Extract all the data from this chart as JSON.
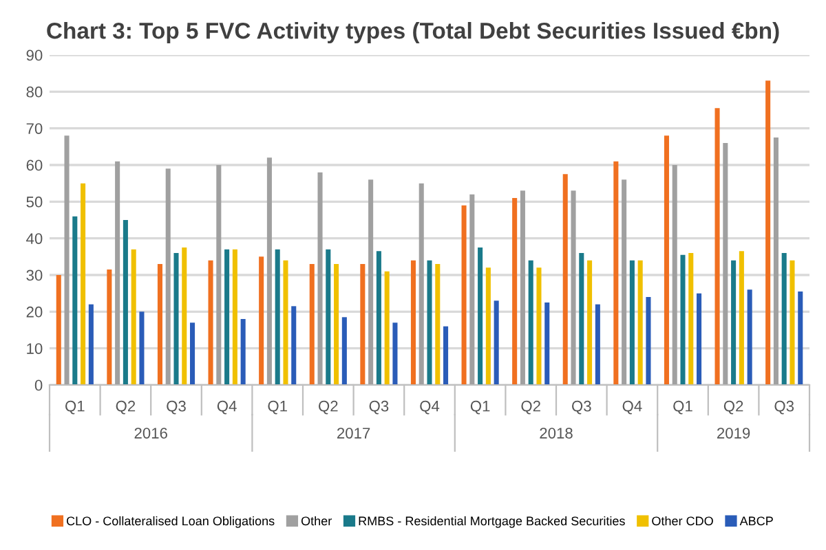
{
  "chart_data": {
    "type": "bar",
    "title": "Chart 3: Top 5 FVC Activity types (Total Debt Securities Issued €bn)",
    "categories": [
      "Q1",
      "Q2",
      "Q3",
      "Q4",
      "Q1",
      "Q2",
      "Q3",
      "Q4",
      "Q1",
      "Q2",
      "Q3",
      "Q4",
      "Q1",
      "Q2",
      "Q3"
    ],
    "annotations": [
      "2016",
      "2017",
      "2018",
      "2019"
    ],
    "series": [
      {
        "name": "CLO - Collateralised Loan Obligations",
        "color": "#f07020",
        "values": [
          30,
          31.5,
          33,
          34,
          35,
          33,
          33,
          34,
          49,
          51,
          57.5,
          61,
          68,
          75.5,
          83
        ]
      },
      {
        "name": "Other",
        "color": "#a0a0a0",
        "values": [
          68,
          61,
          59,
          60,
          62,
          58,
          56,
          55,
          52,
          53,
          53,
          56,
          60,
          66,
          67.5
        ]
      },
      {
        "name": "RMBS - Residential Mortgage Backed Securities",
        "color": "#1a7a8a",
        "values": [
          46,
          45,
          36,
          37,
          37,
          37,
          36.5,
          34,
          37.5,
          34,
          36,
          34,
          35.5,
          34,
          36
        ]
      },
      {
        "name": "Other CDO",
        "color": "#f0c000",
        "values": [
          55,
          37,
          37.5,
          37,
          34,
          33,
          31,
          33,
          32,
          32,
          34,
          34,
          36,
          36.5,
          34
        ]
      },
      {
        "name": "ABCP",
        "color": "#2a5cb8",
        "values": [
          22,
          20,
          17,
          18,
          21.5,
          18.5,
          17,
          16,
          23,
          22.5,
          22,
          24,
          25,
          26,
          25.5
        ]
      }
    ],
    "ylim": [
      0,
      90
    ],
    "yticks": [
      0,
      10,
      20,
      30,
      40,
      50,
      60,
      70,
      80,
      90
    ],
    "grid": "y",
    "legend": "bottom"
  }
}
